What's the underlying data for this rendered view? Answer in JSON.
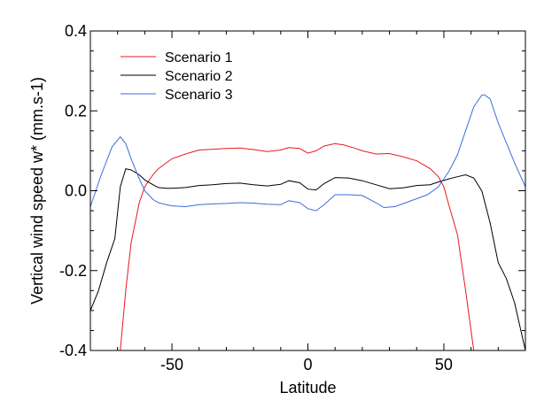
{
  "chart_data": {
    "type": "line",
    "title": "",
    "xlabel": "Latitude",
    "ylabel": "Vertical wind speed w* (mm.s-1)",
    "xlim": [
      -80,
      80
    ],
    "ylim": [
      -0.4,
      0.4
    ],
    "grid": false,
    "legend_position": "top-left",
    "x_ticks": [
      -50,
      0,
      50
    ],
    "x_tick_labels": [
      "-50",
      "0",
      "50"
    ],
    "y_ticks": [
      -0.4,
      -0.2,
      0.0,
      0.2,
      0.4
    ],
    "y_tick_labels": [
      "-0.4",
      "-0.2",
      "0.0",
      "0.2",
      "0.4"
    ],
    "series": [
      {
        "name": "Scenario 1",
        "color": "#e8191f",
        "x": [
          -69,
          -67,
          -65,
          -62,
          -60,
          -57,
          -55,
          -52,
          -50,
          -45,
          -40,
          -35,
          -30,
          -25,
          -20,
          -15,
          -10,
          -7,
          -3,
          0,
          3,
          6,
          10,
          13,
          17,
          20,
          25,
          30,
          35,
          40,
          45,
          48,
          50,
          52,
          55,
          58,
          61
        ],
        "y": [
          -0.4,
          -0.25,
          -0.13,
          -0.03,
          0.01,
          0.04,
          0.055,
          0.07,
          0.08,
          0.092,
          0.102,
          0.104,
          0.106,
          0.107,
          0.103,
          0.098,
          0.102,
          0.108,
          0.106,
          0.094,
          0.1,
          0.112,
          0.118,
          0.115,
          0.107,
          0.1,
          0.092,
          0.093,
          0.085,
          0.075,
          0.055,
          0.035,
          0.01,
          -0.04,
          -0.11,
          -0.25,
          -0.4
        ]
      },
      {
        "name": "Scenario 2",
        "color": "#000000",
        "x": [
          -80,
          -77,
          -74,
          -71,
          -69,
          -67,
          -65,
          -62,
          -60,
          -57,
          -55,
          -52,
          -50,
          -45,
          -40,
          -35,
          -30,
          -25,
          -20,
          -15,
          -10,
          -7,
          -3,
          0,
          3,
          6,
          10,
          15,
          20,
          25,
          30,
          35,
          40,
          45,
          48,
          52,
          55,
          58,
          61,
          64,
          67,
          70,
          73,
          76,
          80
        ],
        "y": [
          -0.3,
          -0.25,
          -0.18,
          -0.12,
          0.01,
          0.055,
          0.052,
          0.04,
          0.027,
          0.015,
          0.008,
          0.006,
          0.006,
          0.008,
          0.013,
          0.015,
          0.018,
          0.019,
          0.015,
          0.012,
          0.016,
          0.025,
          0.02,
          0.004,
          0.002,
          0.018,
          0.033,
          0.032,
          0.025,
          0.015,
          0.005,
          0.007,
          0.013,
          0.015,
          0.022,
          0.03,
          0.035,
          0.04,
          0.032,
          -0.001,
          -0.08,
          -0.18,
          -0.22,
          -0.28,
          -0.4
        ]
      },
      {
        "name": "Scenario 3",
        "color": "#3a6fd8",
        "x": [
          -80,
          -76,
          -72,
          -69,
          -67,
          -65,
          -62,
          -60,
          -57,
          -55,
          -52,
          -50,
          -45,
          -40,
          -35,
          -30,
          -25,
          -20,
          -15,
          -10,
          -7,
          -3,
          0,
          3,
          6,
          10,
          15,
          20,
          25,
          28,
          32,
          36,
          40,
          44,
          48,
          52,
          55,
          58,
          61,
          64,
          65,
          67,
          70,
          73,
          76,
          80
        ],
        "y": [
          -0.04,
          0.04,
          0.11,
          0.135,
          0.118,
          0.08,
          0.03,
          0.0,
          -0.022,
          -0.03,
          -0.035,
          -0.038,
          -0.04,
          -0.035,
          -0.033,
          -0.032,
          -0.03,
          -0.031,
          -0.034,
          -0.035,
          -0.025,
          -0.03,
          -0.045,
          -0.05,
          -0.035,
          -0.01,
          -0.01,
          -0.012,
          -0.03,
          -0.042,
          -0.04,
          -0.03,
          -0.02,
          -0.01,
          0.01,
          0.05,
          0.09,
          0.15,
          0.21,
          0.24,
          0.24,
          0.23,
          0.17,
          0.12,
          0.07,
          0.01
        ]
      }
    ]
  }
}
